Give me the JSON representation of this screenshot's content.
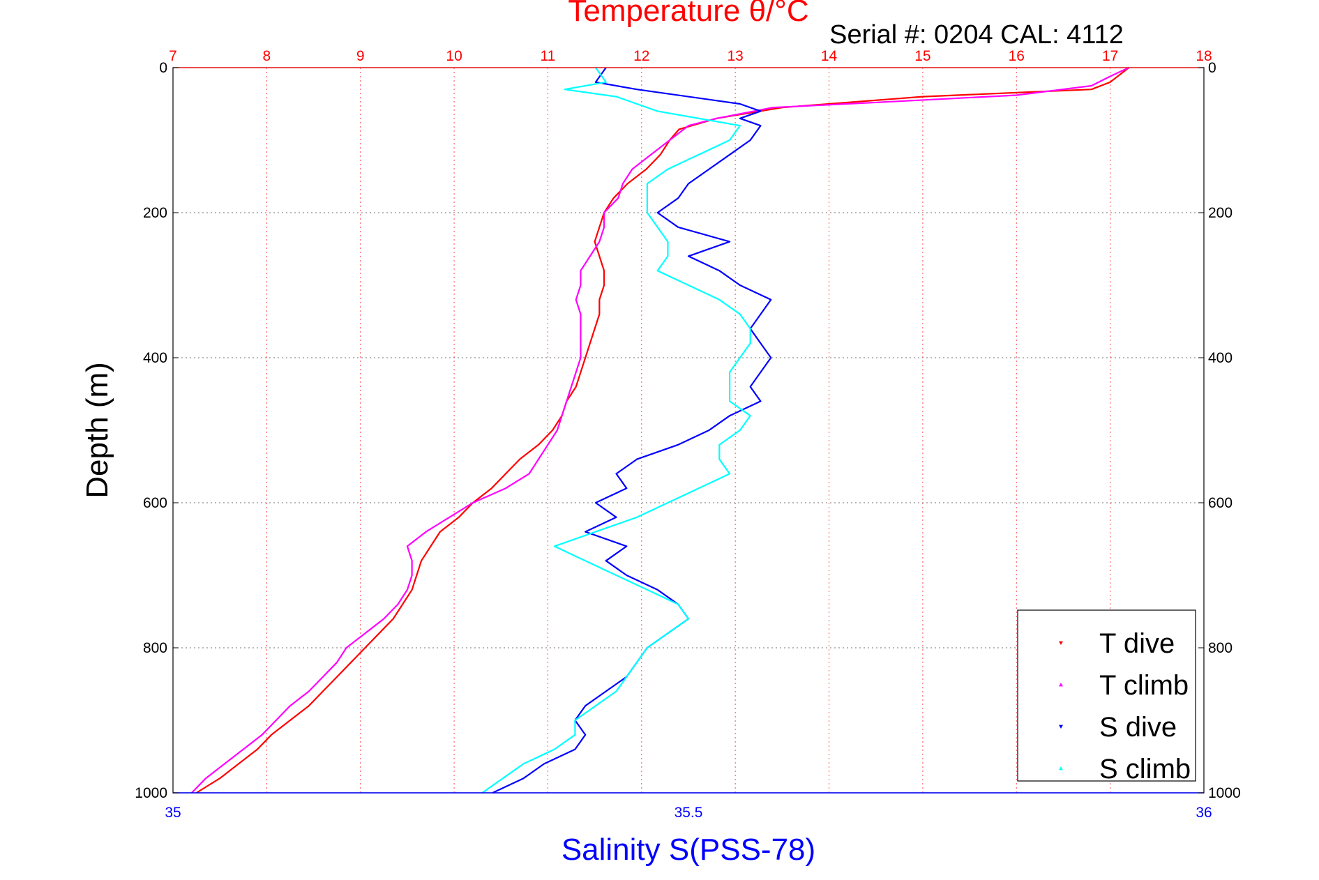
{
  "chart_data": {
    "type": "scatter",
    "title": "Temperature θ/°C",
    "subtitle": "Serial #: 0204  CAL: 4112",
    "xlabel": "Salinity S(PSS-78)",
    "ylabel": "Depth (m)",
    "x_top": {
      "label": "Temperature θ/°C",
      "lim": [
        7,
        18
      ],
      "ticks": [
        "7",
        "8",
        "9",
        "10",
        "11",
        "12",
        "13",
        "14",
        "15",
        "16",
        "17",
        "18"
      ],
      "color": "#ff0000"
    },
    "x_bottom": {
      "label": "Salinity S(PSS-78)",
      "lim": [
        35,
        36
      ],
      "ticks": [
        "35",
        "35.5",
        "36"
      ],
      "color": "#0000ff"
    },
    "y": {
      "label": "Depth (m)",
      "lim": [
        0,
        1000
      ],
      "reversed": true,
      "ticks": [
        "0",
        "200",
        "400",
        "600",
        "800",
        "1000"
      ]
    },
    "grid": true,
    "legend_position": "bottom-right",
    "series": [
      {
        "name": "T dive",
        "axis": "temperature",
        "color": "#ff0000",
        "marker": "triangle-down",
        "points": [
          [
            17.2,
            0
          ],
          [
            17.0,
            20
          ],
          [
            16.8,
            30
          ],
          [
            15.0,
            40
          ],
          [
            13.5,
            55
          ],
          [
            12.8,
            70
          ],
          [
            12.4,
            85
          ],
          [
            12.3,
            100
          ],
          [
            12.2,
            120
          ],
          [
            12.05,
            140
          ],
          [
            11.85,
            160
          ],
          [
            11.7,
            180
          ],
          [
            11.6,
            200
          ],
          [
            11.55,
            220
          ],
          [
            11.5,
            240
          ],
          [
            11.55,
            260
          ],
          [
            11.6,
            280
          ],
          [
            11.6,
            300
          ],
          [
            11.55,
            320
          ],
          [
            11.55,
            340
          ],
          [
            11.5,
            360
          ],
          [
            11.45,
            380
          ],
          [
            11.4,
            400
          ],
          [
            11.35,
            420
          ],
          [
            11.3,
            440
          ],
          [
            11.2,
            460
          ],
          [
            11.15,
            480
          ],
          [
            11.05,
            500
          ],
          [
            10.9,
            520
          ],
          [
            10.7,
            540
          ],
          [
            10.55,
            560
          ],
          [
            10.4,
            580
          ],
          [
            10.2,
            600
          ],
          [
            10.05,
            620
          ],
          [
            9.85,
            640
          ],
          [
            9.75,
            660
          ],
          [
            9.65,
            680
          ],
          [
            9.6,
            700
          ],
          [
            9.55,
            720
          ],
          [
            9.45,
            740
          ],
          [
            9.35,
            760
          ],
          [
            9.2,
            780
          ],
          [
            9.05,
            800
          ],
          [
            8.9,
            820
          ],
          [
            8.75,
            840
          ],
          [
            8.6,
            860
          ],
          [
            8.45,
            880
          ],
          [
            8.25,
            900
          ],
          [
            8.05,
            920
          ],
          [
            7.9,
            940
          ],
          [
            7.7,
            960
          ],
          [
            7.5,
            980
          ],
          [
            7.25,
            1000
          ]
        ]
      },
      {
        "name": "T climb",
        "axis": "temperature",
        "color": "#ff00ff",
        "marker": "triangle-up",
        "points": [
          [
            7.2,
            1000
          ],
          [
            7.35,
            980
          ],
          [
            7.55,
            960
          ],
          [
            7.75,
            940
          ],
          [
            7.95,
            920
          ],
          [
            8.1,
            900
          ],
          [
            8.25,
            880
          ],
          [
            8.45,
            860
          ],
          [
            8.6,
            840
          ],
          [
            8.75,
            820
          ],
          [
            8.85,
            800
          ],
          [
            9.05,
            780
          ],
          [
            9.25,
            760
          ],
          [
            9.4,
            740
          ],
          [
            9.5,
            720
          ],
          [
            9.55,
            700
          ],
          [
            9.55,
            680
          ],
          [
            9.5,
            660
          ],
          [
            9.7,
            640
          ],
          [
            9.95,
            620
          ],
          [
            10.2,
            600
          ],
          [
            10.55,
            580
          ],
          [
            10.8,
            560
          ],
          [
            10.9,
            540
          ],
          [
            11.0,
            520
          ],
          [
            11.1,
            500
          ],
          [
            11.15,
            480
          ],
          [
            11.2,
            460
          ],
          [
            11.25,
            440
          ],
          [
            11.3,
            420
          ],
          [
            11.35,
            400
          ],
          [
            11.35,
            380
          ],
          [
            11.35,
            360
          ],
          [
            11.35,
            340
          ],
          [
            11.3,
            320
          ],
          [
            11.35,
            300
          ],
          [
            11.35,
            280
          ],
          [
            11.45,
            260
          ],
          [
            11.55,
            240
          ],
          [
            11.6,
            220
          ],
          [
            11.6,
            200
          ],
          [
            11.75,
            180
          ],
          [
            11.8,
            160
          ],
          [
            11.9,
            140
          ],
          [
            12.1,
            120
          ],
          [
            12.3,
            100
          ],
          [
            12.5,
            80
          ],
          [
            12.8,
            70
          ],
          [
            13.4,
            55
          ],
          [
            14.5,
            48
          ],
          [
            16.0,
            38
          ],
          [
            16.8,
            25
          ],
          [
            17.0,
            12
          ],
          [
            17.2,
            0
          ]
        ]
      },
      {
        "name": "S dive",
        "axis": "salinity",
        "color": "#0000ff",
        "marker": "triangle-down",
        "points": [
          [
            35.42,
            0
          ],
          [
            35.41,
            20
          ],
          [
            35.45,
            30
          ],
          [
            35.55,
            50
          ],
          [
            35.57,
            60
          ],
          [
            35.55,
            70
          ],
          [
            35.57,
            80
          ],
          [
            35.56,
            100
          ],
          [
            35.54,
            120
          ],
          [
            35.52,
            140
          ],
          [
            35.5,
            160
          ],
          [
            35.49,
            180
          ],
          [
            35.47,
            200
          ],
          [
            35.49,
            220
          ],
          [
            35.54,
            240
          ],
          [
            35.5,
            260
          ],
          [
            35.53,
            280
          ],
          [
            35.55,
            300
          ],
          [
            35.58,
            320
          ],
          [
            35.57,
            340
          ],
          [
            35.56,
            360
          ],
          [
            35.57,
            380
          ],
          [
            35.58,
            400
          ],
          [
            35.57,
            420
          ],
          [
            35.56,
            440
          ],
          [
            35.57,
            460
          ],
          [
            35.54,
            480
          ],
          [
            35.52,
            500
          ],
          [
            35.49,
            520
          ],
          [
            35.45,
            540
          ],
          [
            35.43,
            560
          ],
          [
            35.44,
            580
          ],
          [
            35.41,
            600
          ],
          [
            35.43,
            620
          ],
          [
            35.4,
            640
          ],
          [
            35.44,
            660
          ],
          [
            35.42,
            680
          ],
          [
            35.44,
            700
          ],
          [
            35.47,
            720
          ],
          [
            35.49,
            740
          ],
          [
            35.5,
            760
          ],
          [
            35.48,
            780
          ],
          [
            35.46,
            800
          ],
          [
            35.45,
            820
          ],
          [
            35.44,
            840
          ],
          [
            35.42,
            860
          ],
          [
            35.4,
            880
          ],
          [
            35.39,
            900
          ],
          [
            35.4,
            920
          ],
          [
            35.39,
            940
          ],
          [
            35.36,
            960
          ],
          [
            35.34,
            980
          ],
          [
            35.31,
            1000
          ]
        ]
      },
      {
        "name": "S climb",
        "axis": "salinity",
        "color": "#00ffff",
        "marker": "triangle-up",
        "points": [
          [
            35.3,
            1000
          ],
          [
            35.32,
            980
          ],
          [
            35.34,
            960
          ],
          [
            35.37,
            940
          ],
          [
            35.39,
            920
          ],
          [
            35.39,
            900
          ],
          [
            35.41,
            880
          ],
          [
            35.43,
            860
          ],
          [
            35.44,
            840
          ],
          [
            35.45,
            820
          ],
          [
            35.46,
            800
          ],
          [
            35.48,
            780
          ],
          [
            35.5,
            760
          ],
          [
            35.49,
            740
          ],
          [
            35.46,
            720
          ],
          [
            35.43,
            700
          ],
          [
            35.4,
            680
          ],
          [
            35.37,
            660
          ],
          [
            35.41,
            640
          ],
          [
            35.45,
            620
          ],
          [
            35.48,
            600
          ],
          [
            35.51,
            580
          ],
          [
            35.54,
            560
          ],
          [
            35.53,
            540
          ],
          [
            35.53,
            520
          ],
          [
            35.55,
            500
          ],
          [
            35.56,
            480
          ],
          [
            35.54,
            460
          ],
          [
            35.54,
            440
          ],
          [
            35.54,
            420
          ],
          [
            35.55,
            400
          ],
          [
            35.56,
            380
          ],
          [
            35.56,
            360
          ],
          [
            35.55,
            340
          ],
          [
            35.53,
            320
          ],
          [
            35.5,
            300
          ],
          [
            35.47,
            280
          ],
          [
            35.48,
            260
          ],
          [
            35.48,
            240
          ],
          [
            35.47,
            220
          ],
          [
            35.46,
            200
          ],
          [
            35.46,
            180
          ],
          [
            35.46,
            160
          ],
          [
            35.48,
            140
          ],
          [
            35.51,
            120
          ],
          [
            35.54,
            100
          ],
          [
            35.55,
            80
          ],
          [
            35.47,
            60
          ],
          [
            35.43,
            40
          ],
          [
            35.38,
            30
          ],
          [
            35.42,
            20
          ],
          [
            35.41,
            0
          ]
        ]
      }
    ]
  }
}
